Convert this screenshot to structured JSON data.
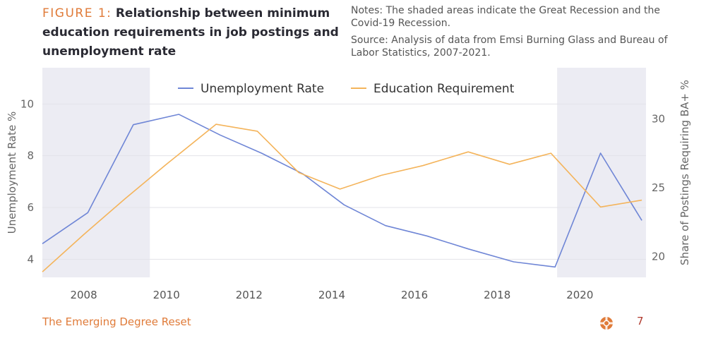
{
  "header": {
    "figure_label": "FIGURE 1:",
    "figure_title": "Relationship between minimum education requirements in job postings and unemployment rate",
    "notes": "Notes: The shaded areas indicate the Great Recession and the Covid-19 Recession.",
    "source": "Source: Analysis of data from Emsi Burning Glass and Bureau of Labor Statistics, 2007-2021."
  },
  "footer": {
    "brand": "The Emerging Degree Reset",
    "page_number": "7",
    "logo_icon": "lifebuoy-logo-icon"
  },
  "colors": {
    "unemployment": "#6f86d6",
    "education": "#f4b45b",
    "shade": "#ececf3",
    "accent": "#e07b39"
  },
  "chart_data": {
    "type": "line",
    "xlabel": "",
    "ylabel": "Unemployment Rate %",
    "ylabel_right": "Share of Postings Requiring BA+ %",
    "xlim": [
      2007,
      2021.6
    ],
    "ylim": [
      3.3,
      11.4
    ],
    "ylim_right": [
      18.5,
      33.7
    ],
    "x_ticks": [
      2008,
      2010,
      2012,
      2014,
      2016,
      2018,
      2020
    ],
    "y_ticks": [
      4,
      6,
      8,
      10
    ],
    "y_ticks_right": [
      20,
      25,
      30
    ],
    "grid": true,
    "legend": "top-center",
    "shaded_regions": [
      [
        2007,
        2009.6
      ],
      [
        2019.45,
        2021.6
      ]
    ],
    "series": [
      {
        "name": "Unemployment Rate",
        "axis": "left",
        "x": [
          2007,
          2008.1,
          2009.2,
          2010.3,
          2011.3,
          2012.3,
          2013.3,
          2014.3,
          2015.3,
          2016.3,
          2017.3,
          2018.4,
          2019.4,
          2020.5,
          2021.5
        ],
        "y": [
          4.6,
          5.8,
          9.2,
          9.6,
          8.8,
          8.1,
          7.3,
          6.1,
          5.3,
          4.9,
          4.4,
          3.9,
          3.7,
          8.1,
          5.5
        ]
      },
      {
        "name": "Education Requirement",
        "axis": "right",
        "x": [
          2007,
          2008,
          2009,
          2010,
          2011.2,
          2012.2,
          2013.2,
          2014.2,
          2015.2,
          2016.2,
          2017.3,
          2018.3,
          2019.3,
          2020.5,
          2021.5
        ],
        "y": [
          18.9,
          21.6,
          24.2,
          26.7,
          29.6,
          29.1,
          26.1,
          24.9,
          25.9,
          26.6,
          27.6,
          26.7,
          27.5,
          23.6,
          24.1
        ]
      }
    ]
  }
}
